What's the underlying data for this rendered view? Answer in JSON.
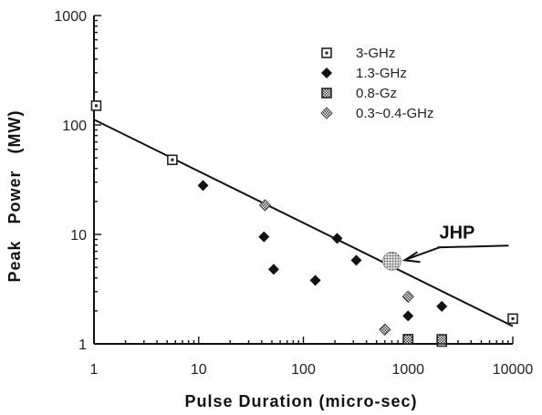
{
  "chart_data": {
    "type": "scatter",
    "xlabel": "Pulse Duration (micro-sec)",
    "ylabel": "Peak   Power   (MW)",
    "xscale": "log",
    "yscale": "log",
    "xlim": [
      1,
      10000
    ],
    "ylim": [
      1,
      1000
    ],
    "x_ticks": [
      "1",
      "10",
      "100",
      "1000",
      "10000"
    ],
    "y_ticks": [
      "1",
      "10",
      "100",
      "1000"
    ],
    "legend_position": "top-right",
    "series": [
      {
        "name": "3-GHz",
        "marker": "square-dot",
        "points": [
          {
            "x": 1.05,
            "y": 150
          },
          {
            "x": 5.6,
            "y": 48
          },
          {
            "x": 1000,
            "y": 1.1
          },
          {
            "x": 2100,
            "y": 1.05
          },
          {
            "x": 10000,
            "y": 1.7
          }
        ]
      },
      {
        "name": "1.3-GHz",
        "marker": "diamond-filled",
        "points": [
          {
            "x": 11,
            "y": 28
          },
          {
            "x": 42,
            "y": 9.5
          },
          {
            "x": 52,
            "y": 4.8
          },
          {
            "x": 130,
            "y": 3.8
          },
          {
            "x": 210,
            "y": 9.2
          },
          {
            "x": 320,
            "y": 5.8
          },
          {
            "x": 1000,
            "y": 1.8
          },
          {
            "x": 2100,
            "y": 2.2
          }
        ]
      },
      {
        "name": "0.8-Gz",
        "marker": "square-hatched",
        "points": [
          {
            "x": 1000,
            "y": 1.1
          },
          {
            "x": 2100,
            "y": 1.1
          }
        ]
      },
      {
        "name": "0.3~0.4-GHz",
        "marker": "diamond-hatched",
        "points": [
          {
            "x": 43,
            "y": 18.5
          },
          {
            "x": 600,
            "y": 1.35
          },
          {
            "x": 1000,
            "y": 2.7
          }
        ]
      }
    ],
    "trend_line": {
      "x": [
        1,
        10000
      ],
      "y": [
        112,
        1.45
      ]
    },
    "annotations": [
      {
        "text": "JHP",
        "x": 700,
        "y": 5.7
      }
    ]
  }
}
